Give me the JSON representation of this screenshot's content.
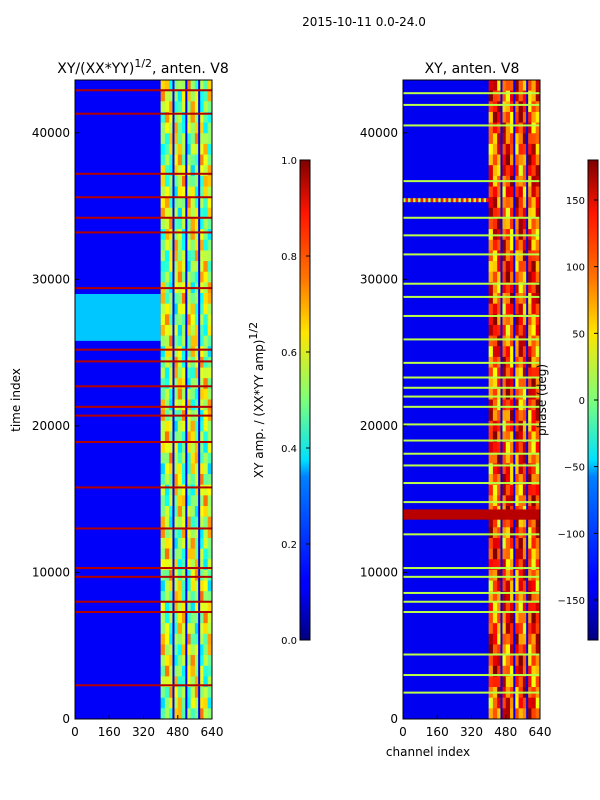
{
  "suptitle": "2015-10-11 0.0-24.0",
  "chart_data": [
    {
      "type": "heatmap",
      "title": "XY/(XX*YY)",
      "title_exp": "1/2",
      "title_suffix": ", anten. V8",
      "xlabel": "",
      "ylabel": "time index",
      "xlim": [
        0,
        640
      ],
      "ylim": [
        0,
        43600
      ],
      "xticks": [
        "0",
        "160",
        "320",
        "480",
        "640"
      ],
      "xtick_values": [
        0,
        160,
        320,
        480,
        640
      ],
      "yticks": [
        "0",
        "10000",
        "20000",
        "30000",
        "40000"
      ],
      "ytick_values": [
        0,
        10000,
        20000,
        30000,
        40000
      ],
      "colormap": "jet",
      "colorbar": {
        "label": "XY amp. / (XX*YY amp)",
        "label_exp": "1/2",
        "range": [
          0.0,
          1.0
        ],
        "ticks": [
          "0.0",
          "0.2",
          "0.4",
          "0.6",
          "0.8",
          "1.0"
        ],
        "tick_values": [
          0.0,
          0.2,
          0.4,
          0.6,
          0.8,
          1.0
        ]
      },
      "background_value": 0.12,
      "active_band_channels": [
        400,
        640
      ],
      "active_band_value": 0.55,
      "bright_block_times": [
        25800,
        29000
      ],
      "bright_block_value": 0.32,
      "flagged_rows_value": 0.95,
      "flagged_rows": [
        2300,
        7300,
        8000,
        9700,
        10300,
        13000,
        15800,
        18900,
        20700,
        21300,
        22700,
        24400,
        25200,
        29400,
        33200,
        34200,
        35600,
        37200,
        41300,
        42900
      ]
    },
    {
      "type": "heatmap",
      "title": "XY, anten. V8",
      "xlabel": "channel index",
      "ylabel": "",
      "xlim": [
        0,
        640
      ],
      "ylim": [
        0,
        43600
      ],
      "xticks": [
        "0",
        "160",
        "320",
        "480",
        "640"
      ],
      "xtick_values": [
        0,
        160,
        320,
        480,
        640
      ],
      "yticks": [
        "0",
        "10000",
        "20000",
        "30000",
        "40000"
      ],
      "ytick_values": [
        0,
        10000,
        20000,
        30000,
        40000
      ],
      "colormap": "jet",
      "colorbar": {
        "label": "phase (deg)",
        "range": [
          -180,
          180
        ],
        "ticks": [
          "−150",
          "−100",
          "−50",
          "0",
          "50",
          "100",
          "150"
        ],
        "tick_values": [
          -150,
          -100,
          -50,
          0,
          50,
          100,
          150
        ]
      },
      "background_value": -140,
      "active_band_channels": [
        400,
        640
      ],
      "active_band_value": 110,
      "noisy_row_time": 35400,
      "red_band_times": [
        13600,
        14300
      ],
      "red_band_value": 160,
      "flagged_rows_value": 20,
      "flagged_rows": [
        1800,
        3000,
        4400,
        7300,
        8000,
        8600,
        9700,
        10300,
        12600,
        14800,
        16100,
        17300,
        18100,
        19000,
        20100,
        21300,
        22000,
        22600,
        23300,
        24300,
        25900,
        27500,
        28800,
        29700,
        31700,
        33000,
        34200,
        36700,
        40500,
        41900,
        42700
      ]
    }
  ]
}
